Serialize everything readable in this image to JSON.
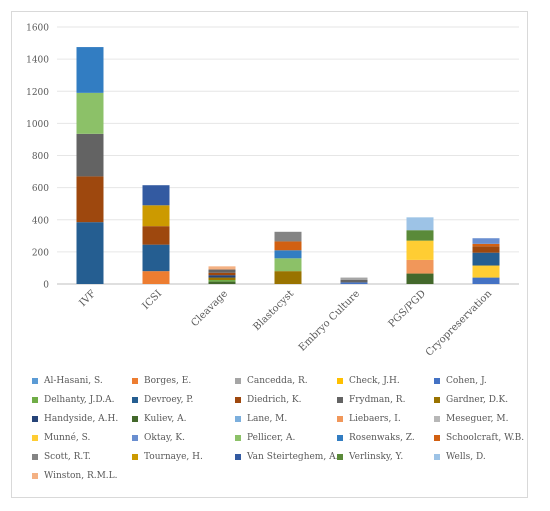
{
  "chart_data": {
    "type": "bar",
    "stacked": true,
    "categories": [
      "IVF",
      "ICSI",
      "Cleavage",
      "Blastocyst",
      "Embryo Culture",
      "PGS/PGD",
      "Cryopreservation"
    ],
    "ylim": [
      0,
      1600
    ],
    "yticks": [
      0,
      200,
      400,
      600,
      800,
      1000,
      1200,
      1400,
      1600
    ],
    "grid": true,
    "legend_position": "bottom",
    "series": [
      {
        "name": "Al-Hasani, S.",
        "color": "#5b9bd5",
        "values": [
          0,
          0,
          0,
          0,
          0,
          0,
          0
        ]
      },
      {
        "name": "Borges, E.",
        "color": "#ed7d31",
        "values": [
          0,
          80,
          0,
          0,
          0,
          0,
          0
        ]
      },
      {
        "name": "Cancedda, R.",
        "color": "#a5a5a5",
        "values": [
          0,
          0,
          0,
          0,
          0,
          0,
          0
        ]
      },
      {
        "name": "Check, J.H.",
        "color": "#ffc000",
        "values": [
          0,
          0,
          0,
          0,
          0,
          0,
          0
        ]
      },
      {
        "name": "Cohen, J.",
        "color": "#4472c4",
        "values": [
          0,
          0,
          0,
          0,
          0,
          0,
          40
        ]
      },
      {
        "name": "Delhanty, J.D.A.",
        "color": "#70ad47",
        "values": [
          0,
          0,
          0,
          0,
          0,
          0,
          0
        ]
      },
      {
        "name": "Devroey, P.",
        "color": "#255e91",
        "values": [
          385,
          165,
          0,
          0,
          0,
          0,
          0
        ]
      },
      {
        "name": "Diedrich, K.",
        "color": "#9e480e",
        "values": [
          285,
          115,
          0,
          0,
          0,
          0,
          0
        ]
      },
      {
        "name": "Frydman, R.",
        "color": "#636363",
        "values": [
          265,
          0,
          0,
          0,
          0,
          0,
          0
        ]
      },
      {
        "name": "Gardner, D.K.",
        "color": "#997300",
        "values": [
          0,
          0,
          0,
          80,
          0,
          0,
          0
        ]
      },
      {
        "name": "Handyside, A.H.",
        "color": "#264478",
        "values": [
          0,
          0,
          0,
          0,
          0,
          0,
          0
        ]
      },
      {
        "name": "Kuliev, A.",
        "color": "#43682b",
        "values": [
          0,
          0,
          0,
          0,
          0,
          65,
          0
        ]
      },
      {
        "name": "Lane, M.",
        "color": "#7cafdd",
        "values": [
          0,
          0,
          0,
          0,
          0,
          0,
          0
        ]
      },
      {
        "name": "Liebaers, I.",
        "color": "#f1975a",
        "values": [
          0,
          0,
          0,
          0,
          0,
          85,
          0
        ]
      },
      {
        "name": "Meseguer, M.",
        "color": "#b7b7b7",
        "values": [
          0,
          0,
          0,
          0,
          0,
          0,
          0
        ]
      },
      {
        "name": "Munné, S.",
        "color": "#ffcd33",
        "values": [
          0,
          0,
          0,
          0,
          0,
          120,
          75
        ]
      },
      {
        "name": "Oktay, K.",
        "color": "#698ed0",
        "values": [
          0,
          0,
          0,
          0,
          0,
          0,
          0
        ]
      },
      {
        "name": "Pellicer, A.",
        "color": "#8cc168",
        "values": [
          255,
          0,
          0,
          80,
          0,
          0,
          0
        ]
      },
      {
        "name": "Rosenwaks, Z.",
        "color": "#327dc2",
        "values": [
          285,
          0,
          0,
          50,
          0,
          0,
          0
        ]
      },
      {
        "name": "Schoolcraft, W.B.",
        "color": "#d26012",
        "values": [
          0,
          0,
          0,
          55,
          0,
          0,
          0
        ]
      },
      {
        "name": "Scott, R.T.",
        "color": "#848484",
        "values": [
          0,
          0,
          0,
          60,
          0,
          0,
          0
        ]
      },
      {
        "name": "Tournaye, H.",
        "color": "#cc9a00",
        "values": [
          0,
          130,
          0,
          0,
          0,
          0,
          0
        ]
      },
      {
        "name": "Van Steirteghem, A.",
        "color": "#335aa1",
        "values": [
          0,
          125,
          0,
          0,
          0,
          0,
          0
        ]
      },
      {
        "name": "Verlinsky, Y.",
        "color": "#5a8a39",
        "values": [
          0,
          0,
          0,
          0,
          0,
          65,
          0
        ]
      },
      {
        "name": "Wells, D.",
        "color": "#9dc3e6",
        "values": [
          0,
          0,
          0,
          0,
          0,
          80,
          0
        ]
      },
      {
        "name": "Winston, R.M.L.",
        "color": "#f4b183",
        "values": [
          0,
          0,
          0,
          0,
          0,
          0,
          0
        ]
      }
    ],
    "extra_segments": [
      {
        "category": "Cleavage",
        "segments": [
          {
            "color": "#43682b",
            "value": 15
          },
          {
            "color": "#70ad47",
            "value": 10
          },
          {
            "color": "#997300",
            "value": 15
          },
          {
            "color": "#264478",
            "value": 15
          },
          {
            "color": "#9e480e",
            "value": 15
          },
          {
            "color": "#636363",
            "value": 20
          },
          {
            "color": "#f4b183",
            "value": 20
          }
        ]
      },
      {
        "category": "Embryo Culture",
        "segments": [
          {
            "color": "#4472c4",
            "value": 10
          },
          {
            "color": "#636363",
            "value": 15
          },
          {
            "color": "#a5a5a5",
            "value": 15
          }
        ]
      },
      {
        "category": "Cryopreservation",
        "segments": [
          {
            "color": "#255e91",
            "value": 80
          },
          {
            "color": "#9e480e",
            "value": 40
          },
          {
            "color": "#d26012",
            "value": 15
          },
          {
            "color": "#698ed0",
            "value": 35
          }
        ]
      },
      {
        "category": "IVF",
        "segments": [
          {
            "color": "#4a90d0",
            "value": 0
          }
        ]
      }
    ]
  }
}
